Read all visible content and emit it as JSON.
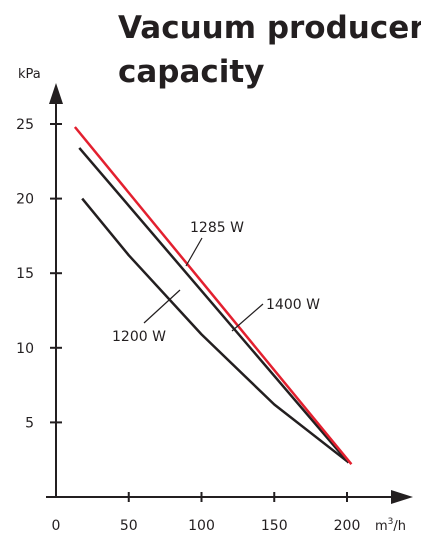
{
  "chart_data": {
    "type": "line",
    "title": "Vacuum producer capacity",
    "title_lines": [
      "Vacuum producer",
      "capacity"
    ],
    "xlabel": "m³/h",
    "ylabel": "kPa",
    "xlim": [
      0,
      200
    ],
    "ylim": [
      0,
      25
    ],
    "xticks": [
      0,
      50,
      100,
      150,
      200
    ],
    "yticks": [
      5,
      10,
      15,
      20,
      25
    ],
    "grid": false,
    "series": [
      {
        "name": "1285 W",
        "color": "#e3202f",
        "x": [
          13,
          203
        ],
        "y": [
          24.8,
          2.2
        ]
      },
      {
        "name": "1400 W",
        "color": "#231f20",
        "x": [
          16,
          201
        ],
        "y": [
          23.4,
          2.3
        ]
      },
      {
        "name": "1200 W",
        "color": "#231f20",
        "x": [
          18,
          50,
          100,
          150,
          200
        ],
        "y": [
          20.0,
          16.2,
          10.9,
          6.2,
          2.4
        ]
      }
    ]
  }
}
